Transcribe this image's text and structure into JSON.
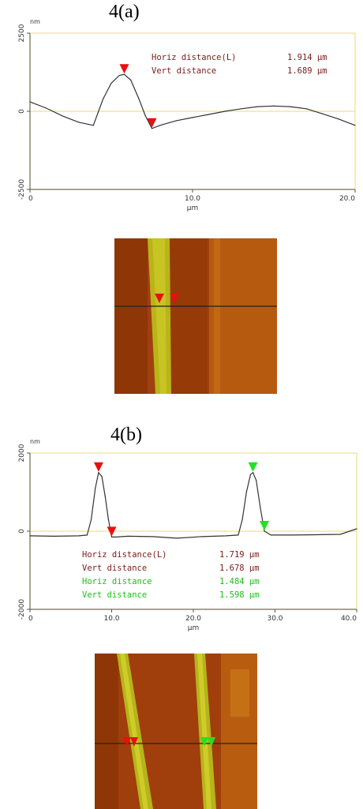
{
  "panels": [
    {
      "label": "4(a)"
    },
    {
      "label": "4(b)"
    }
  ],
  "colors": {
    "curve": "#333333",
    "frame": "#f3e7a0",
    "marker_red": "#e81010",
    "marker_green": "#22e022",
    "text_dark": "#7a1c1c",
    "text_green": "#1ac01a",
    "afm_dark": "#9a3a06",
    "afm_mid": "#b45a0c",
    "afm_stripe": "#b6b41a"
  },
  "chart_data": [
    {
      "type": "line",
      "unit_label": "nm",
      "xlabel": "µm",
      "xlim": [
        0,
        20
      ],
      "ylim": [
        -2500,
        2500
      ],
      "xticks": [
        0,
        10,
        20
      ],
      "xtick_labels": [
        "0",
        "10.0",
        "20.0"
      ],
      "yticks": [
        2500,
        0,
        -2500
      ],
      "ytick_labels": [
        "2500",
        "0",
        "-2500"
      ],
      "series": [
        {
          "x": [
            0,
            1,
            2,
            3,
            3.9,
            4.5,
            5,
            5.5,
            5.8,
            6.2,
            6.7,
            7.1,
            7.5,
            8,
            9,
            10,
            11,
            12,
            13,
            14,
            15,
            16,
            17,
            18,
            19,
            20
          ],
          "y": [
            300,
            100,
            -150,
            -350,
            -450,
            400,
            900,
            1150,
            1180,
            1000,
            400,
            -150,
            -550,
            -450,
            -300,
            -200,
            -100,
            0,
            80,
            150,
            170,
            150,
            80,
            -80,
            -250,
            -450
          ]
        }
      ],
      "markers": [
        {
          "x": 5.8,
          "y": 1180,
          "color": "red"
        },
        {
          "x": 7.5,
          "y": -550,
          "color": "red"
        }
      ],
      "annotations": [
        {
          "label": "Horiz distance(L)",
          "value": "1.914 µm",
          "color": "dark"
        },
        {
          "label": "Vert distance",
          "value": "1.689 µm",
          "color": "dark"
        }
      ]
    },
    {
      "type": "line",
      "unit_label": "nm",
      "xlabel": "µm",
      "xlim": [
        0,
        40
      ],
      "ylim": [
        -2000,
        2000
      ],
      "xticks": [
        0,
        10,
        20,
        30,
        40
      ],
      "xtick_labels": [
        "0",
        "10.0",
        "20.0",
        "30.0",
        "40.0"
      ],
      "yticks": [
        2000,
        0,
        -2000
      ],
      "ytick_labels": [
        "2000",
        "0",
        "-2000"
      ],
      "series": [
        {
          "x": [
            0,
            3,
            6,
            7,
            7.5,
            8,
            8.4,
            8.8,
            9.2,
            9.6,
            10,
            10.5,
            12,
            15,
            18,
            21,
            24,
            25.5,
            26,
            26.5,
            27,
            27.3,
            27.7,
            28.2,
            28.7,
            29.5,
            32,
            35,
            38,
            40
          ],
          "y": [
            -120,
            -130,
            -120,
            -100,
            300,
            1100,
            1500,
            1400,
            900,
            300,
            -150,
            -150,
            -130,
            -140,
            -180,
            -140,
            -120,
            -100,
            300,
            1000,
            1450,
            1500,
            1300,
            600,
            0,
            -100,
            -100,
            -90,
            -80,
            60
          ]
        }
      ],
      "markers": [
        {
          "x": 8.4,
          "y": 1500,
          "color": "red"
        },
        {
          "x": 10,
          "y": -150,
          "color": "red"
        },
        {
          "x": 27.3,
          "y": 1500,
          "color": "green"
        },
        {
          "x": 28.7,
          "y": 0,
          "color": "green"
        }
      ],
      "annotations": [
        {
          "label": "Horiz distance(L)",
          "value": "1.719 µm",
          "color": "dark"
        },
        {
          "label": "Vert distance",
          "value": "1.678 µm",
          "color": "dark"
        },
        {
          "label": "Horiz distance",
          "value": "1.484 µm",
          "color": "green"
        },
        {
          "label": "Vert distance",
          "value": "1.598 µm",
          "color": "green"
        }
      ]
    }
  ]
}
